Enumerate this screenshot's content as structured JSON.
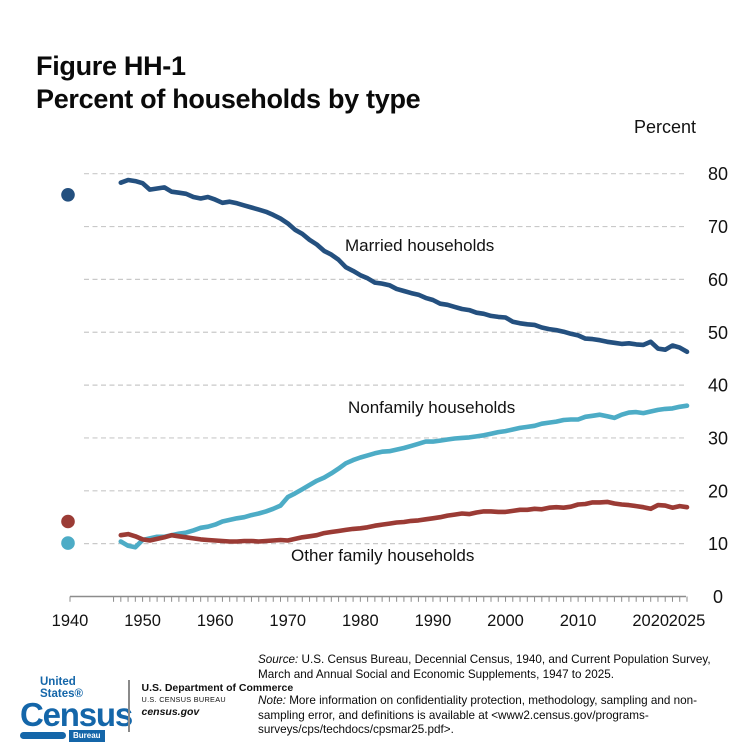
{
  "figure": {
    "label": "Figure HH-1",
    "title": "Percent of households by type"
  },
  "chart_data": {
    "type": "line",
    "title": "Percent of households by type",
    "ylabel": "Percent",
    "ylim": [
      0,
      80
    ],
    "y_ticks": [
      0,
      10,
      20,
      30,
      40,
      50,
      60,
      70,
      80
    ],
    "x_ticks": [
      1940,
      1950,
      1960,
      1970,
      1980,
      1990,
      2000,
      2010,
      2020,
      2025
    ],
    "xlim": [
      1940,
      2025
    ],
    "grid": "horizontal-dashed",
    "legend_position": "inline-labels",
    "series": [
      {
        "name": "Married households",
        "color": "#24507F",
        "start_year": 1947,
        "value_1940": 76.0,
        "values": [
          78.3,
          78.8,
          78.6,
          78.2,
          77.0,
          77.2,
          77.4,
          76.6,
          76.4,
          76.2,
          75.6,
          75.3,
          75.6,
          75.1,
          74.5,
          74.7,
          74.4,
          74.0,
          73.6,
          73.2,
          72.8,
          72.2,
          71.5,
          70.6,
          69.4,
          68.6,
          67.5,
          66.6,
          65.4,
          64.7,
          63.7,
          62.3,
          61.6,
          60.8,
          60.2,
          59.4,
          59.2,
          58.9,
          58.2,
          57.8,
          57.4,
          57.1,
          56.5,
          56.1,
          55.4,
          55.2,
          54.8,
          54.4,
          54.2,
          53.7,
          53.5,
          53.1,
          52.9,
          52.8,
          52.0,
          51.7,
          51.5,
          51.4,
          50.9,
          50.6,
          50.4,
          50.1,
          49.7,
          49.4,
          48.8,
          48.7,
          48.5,
          48.2,
          48.0,
          47.8,
          47.9,
          47.7,
          47.6,
          48.2,
          46.9,
          46.7,
          47.5,
          47.1,
          46.3
        ]
      },
      {
        "name": "Nonfamily households",
        "color": "#4DACC6",
        "start_year": 1947,
        "value_1940": 10.1,
        "values": [
          10.4,
          9.6,
          9.3,
          10.7,
          11.0,
          11.3,
          11.3,
          11.6,
          11.9,
          12.1,
          12.5,
          13.0,
          13.2,
          13.6,
          14.2,
          14.5,
          14.8,
          15.0,
          15.4,
          15.7,
          16.1,
          16.6,
          17.2,
          18.8,
          19.5,
          20.3,
          21.1,
          21.9,
          22.5,
          23.3,
          24.2,
          25.2,
          25.8,
          26.3,
          26.7,
          27.1,
          27.4,
          27.5,
          27.8,
          28.1,
          28.5,
          28.9,
          29.3,
          29.3,
          29.5,
          29.7,
          29.9,
          30.0,
          30.1,
          30.3,
          30.5,
          30.8,
          31.1,
          31.3,
          31.6,
          31.9,
          32.1,
          32.3,
          32.7,
          32.9,
          33.1,
          33.4,
          33.5,
          33.5,
          34.0,
          34.2,
          34.4,
          34.1,
          33.8,
          34.4,
          34.8,
          34.9,
          34.7,
          35.0,
          35.3,
          35.5,
          35.6,
          35.9,
          36.1
        ]
      },
      {
        "name": "Other family households",
        "color": "#9B3B35",
        "start_year": 1947,
        "value_1940": 14.2,
        "values": [
          11.6,
          11.8,
          11.4,
          10.8,
          10.6,
          10.9,
          11.2,
          11.6,
          11.4,
          11.2,
          11.0,
          10.8,
          10.7,
          10.6,
          10.5,
          10.4,
          10.4,
          10.5,
          10.5,
          10.4,
          10.5,
          10.6,
          10.7,
          10.6,
          10.9,
          11.2,
          11.4,
          11.6,
          12.0,
          12.2,
          12.4,
          12.6,
          12.8,
          12.9,
          13.1,
          13.4,
          13.6,
          13.8,
          14.0,
          14.1,
          14.3,
          14.4,
          14.6,
          14.8,
          15.0,
          15.3,
          15.5,
          15.7,
          15.6,
          15.9,
          16.1,
          16.1,
          16.0,
          16.0,
          16.2,
          16.4,
          16.4,
          16.6,
          16.5,
          16.8,
          16.9,
          16.8,
          17.0,
          17.4,
          17.5,
          17.8,
          17.8,
          17.9,
          17.6,
          17.4,
          17.3,
          17.1,
          16.9,
          16.6,
          17.3,
          17.2,
          16.8,
          17.1,
          16.9
        ]
      }
    ]
  },
  "footnotes": {
    "source_label": "Source:",
    "source_text": "U.S. Census Bureau, Decennial Census, 1940, and Current Population Survey, March and Annual Social and Economic Supplements, 1947 to 2025.",
    "note_label": "Note:",
    "note_text": "More information on confidentiality protection, methodology, sampling and non-sampling error, and definitions is available at <www2.census.gov/programs-surveys/cps/techdocs/cpsmar25.pdf>."
  },
  "logo": {
    "united_states": "United States®",
    "census": "Census",
    "bureau": "Bureau",
    "dept": "U.S. Department of Commerce",
    "bureau_caps": "U.S. CENSUS BUREAU",
    "site": "census.gov",
    "brand_blue": "#1466A9"
  }
}
